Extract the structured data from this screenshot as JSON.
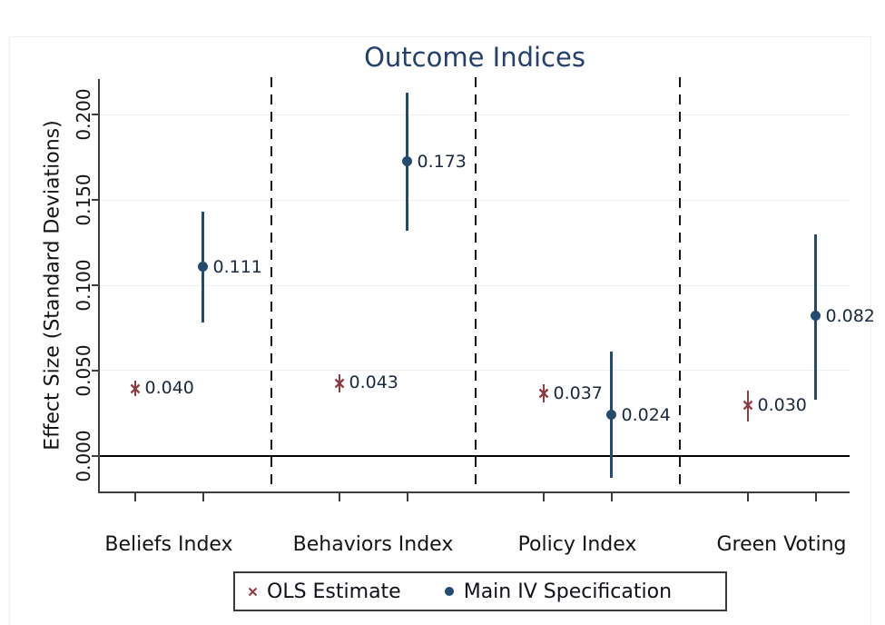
{
  "chart_data": {
    "type": "scatter",
    "title": "Outcome Indices",
    "ylabel": "Effect Size (Standard Deviations)",
    "xlabel": "",
    "categories": [
      "Beliefs Index",
      "Behaviors Index",
      "Policy Index",
      "Green Voting"
    ],
    "series": [
      {
        "name": "OLS Estimate",
        "marker": "x",
        "color": "#8d3c42",
        "values": [
          0.04,
          0.043,
          0.037,
          0.03
        ],
        "value_labels": [
          "0.040",
          "0.043",
          "0.037",
          "0.030"
        ],
        "ci_low": [
          0.035,
          0.037,
          0.031,
          0.02
        ],
        "ci_high": [
          0.044,
          0.048,
          0.042,
          0.038
        ]
      },
      {
        "name": "Main IV Specification",
        "marker": "dot",
        "color": "#254a70",
        "values": [
          0.111,
          0.173,
          0.024,
          0.082
        ],
        "value_labels": [
          "0.111",
          "0.173",
          "0.024",
          "0.082"
        ],
        "ci_low": [
          0.078,
          0.132,
          -0.013,
          0.033
        ],
        "ci_high": [
          0.143,
          0.213,
          0.061,
          0.13
        ]
      }
    ],
    "ylim": [
      -0.021,
      0.221
    ],
    "yticks": {
      "values": [
        0.0,
        0.05,
        0.1,
        0.15,
        0.2
      ],
      "labels": [
        "0.000",
        "0.050",
        "0.100",
        "0.150",
        "0.200"
      ]
    },
    "grid": "horizontal",
    "gridline_color": "#e8f1f4",
    "zero_line": true,
    "zero_line_color": "#000000",
    "group_separators": "dashed",
    "title_color": "#24406e",
    "legend_position": "bottom"
  }
}
